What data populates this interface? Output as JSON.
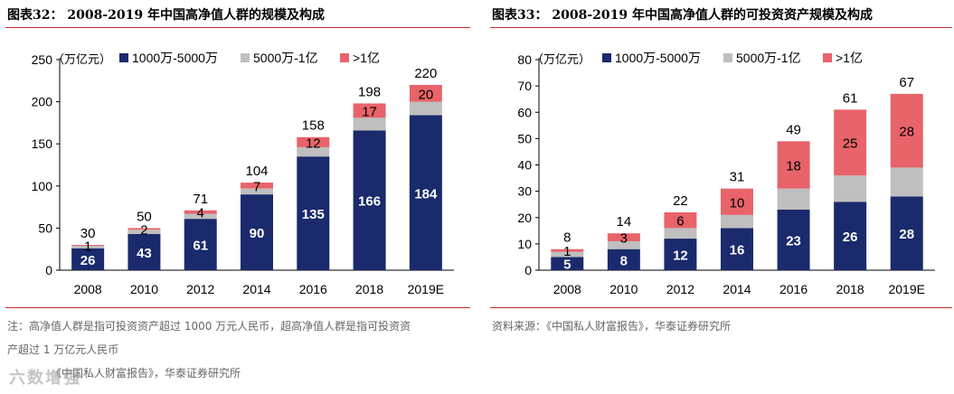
{
  "left_panel": {
    "title": "图表32：  2008-2019 年中国高净值人群的规模及构成",
    "notes": [
      "注：高净值人群是指可投资资产超过 1000 万元人民币，超高净值人群是指可投资资",
      "产超过 1 万亿元人民币",
      "《中国私人财富报告》，华泰证券研究所"
    ]
  },
  "right_panel": {
    "title": "图表33：  2008-2019 年中国高净值人群的可投资资产规模及构成",
    "notes": [
      "资料来源：《中国私人财富报告》，华泰证券研究所"
    ]
  },
  "watermark": "六数增强",
  "colors": {
    "navy": "#1a2a6c",
    "gray": "#bfbfbf",
    "red": "#e8636a",
    "title_rule": "#c0282d"
  },
  "chart_data": [
    {
      "type": "bar",
      "stacked": true,
      "title": "2008-2019 年中国高净值人群的规模及构成",
      "unit": "（万亿元）",
      "categories": [
        "2008",
        "2010",
        "2012",
        "2014",
        "2016",
        "2018",
        "2019E"
      ],
      "series": [
        {
          "name": "1000万-5000万",
          "color": "#1a2a6c",
          "values": [
            26,
            43,
            61,
            90,
            135,
            166,
            184
          ],
          "labels": [
            "26",
            "43",
            "61",
            "90",
            "135",
            "166",
            "184"
          ]
        },
        {
          "name": "5000万-1亿",
          "color": "#bfbfbf",
          "values": [
            3,
            5,
            6,
            7,
            11,
            15,
            16
          ],
          "labels": [
            "",
            "",
            "",
            "",
            "",
            "",
            ""
          ]
        },
        {
          "name": ">1亿",
          "color": "#e8636a",
          "values": [
            1,
            2,
            4,
            7,
            12,
            17,
            20
          ],
          "labels": [
            "1",
            "2",
            "4",
            "7",
            "12",
            "17",
            "20"
          ]
        }
      ],
      "totals": [
        "30",
        "50",
        "71",
        "104",
        "158",
        "198",
        "220"
      ],
      "ylim": [
        0,
        250
      ],
      "yticks": [
        "0",
        "50",
        "100",
        "150",
        "200",
        "250"
      ],
      "ytick_values": [
        0,
        50,
        100,
        150,
        200,
        250
      ],
      "legend": "top"
    },
    {
      "type": "bar",
      "stacked": true,
      "title": "2008-2019 年中国高净值人群的可投资资产规模及构成",
      "unit": "（万亿元）",
      "categories": [
        "2008",
        "2010",
        "2012",
        "2014",
        "2016",
        "2018",
        "2019E"
      ],
      "series": [
        {
          "name": "1000万-5000万",
          "color": "#1a2a6c",
          "values": [
            5,
            8,
            12,
            16,
            23,
            26,
            28
          ],
          "labels": [
            "5",
            "8",
            "12",
            "16",
            "23",
            "26",
            "28"
          ]
        },
        {
          "name": "5000万-1亿",
          "color": "#bfbfbf",
          "values": [
            2,
            3,
            4,
            5,
            8,
            10,
            11
          ],
          "labels": [
            "",
            "",
            "",
            "",
            "",
            "",
            ""
          ]
        },
        {
          "name": ">1亿",
          "color": "#e8636a",
          "values": [
            1,
            3,
            6,
            10,
            18,
            25,
            28
          ],
          "labels": [
            "1",
            "3",
            "6",
            "10",
            "18",
            "25",
            "28"
          ]
        }
      ],
      "totals": [
        "8",
        "14",
        "22",
        "31",
        "49",
        "61",
        "67"
      ],
      "ylim": [
        0,
        80
      ],
      "yticks": [
        "0",
        "10",
        "20",
        "30",
        "40",
        "50",
        "60",
        "70",
        "80"
      ],
      "ytick_values": [
        0,
        10,
        20,
        30,
        40,
        50,
        60,
        70,
        80
      ],
      "legend": "top"
    }
  ]
}
